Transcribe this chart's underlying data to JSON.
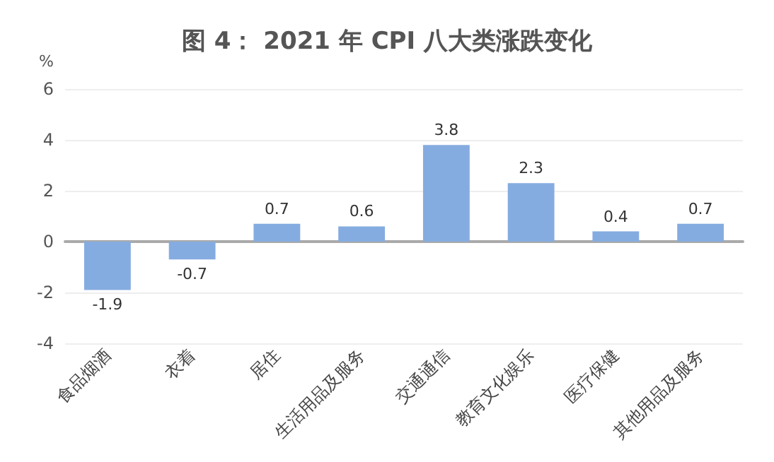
{
  "chart_data": {
    "type": "bar",
    "title": "图 4： 2021 年 CPI 八大类涨跌变化",
    "ylabel": "%",
    "categories": [
      "食品烟酒",
      "衣着",
      "居住",
      "生活用品及服务",
      "交通通信",
      "教育文化娱乐",
      "医疗保健",
      "其他用品及服务"
    ],
    "values": [
      -1.9,
      -0.7,
      0.7,
      0.6,
      3.8,
      2.3,
      0.4,
      0.7
    ],
    "color": "#85ace0",
    "ylim": [
      -4,
      6
    ],
    "yticks": [
      -4,
      -2,
      0,
      2,
      4,
      6
    ],
    "grid": "y",
    "data_labels": true
  }
}
